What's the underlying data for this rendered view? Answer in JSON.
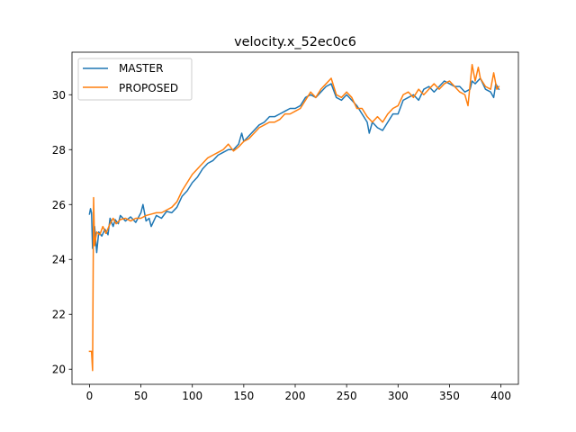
{
  "chart_data": {
    "type": "line",
    "title": "velocity.x_52ec0c6",
    "xlabel": "",
    "ylabel": "",
    "xlim": [
      -17,
      417
    ],
    "ylim": [
      19.45,
      31.55
    ],
    "xticks": [
      0,
      50,
      100,
      150,
      200,
      250,
      300,
      350,
      400
    ],
    "yticks": [
      20,
      22,
      24,
      26,
      28,
      30
    ],
    "grid": false,
    "legend_position": "upper-left",
    "colors": {
      "MASTER": "#1f77b4",
      "PROPOSED": "#ff7f0e"
    },
    "series": [
      {
        "name": "MASTER",
        "points": [
          [
            0,
            25.65
          ],
          [
            1,
            25.85
          ],
          [
            2,
            25.7
          ],
          [
            3,
            24.4
          ],
          [
            5,
            25.2
          ],
          [
            7,
            24.25
          ],
          [
            9,
            25.0
          ],
          [
            12,
            24.85
          ],
          [
            15,
            25.1
          ],
          [
            18,
            24.9
          ],
          [
            20,
            25.5
          ],
          [
            23,
            25.2
          ],
          [
            25,
            25.45
          ],
          [
            28,
            25.3
          ],
          [
            30,
            25.6
          ],
          [
            35,
            25.4
          ],
          [
            40,
            25.55
          ],
          [
            45,
            25.35
          ],
          [
            50,
            25.7
          ],
          [
            52,
            26.0
          ],
          [
            55,
            25.4
          ],
          [
            58,
            25.5
          ],
          [
            60,
            25.2
          ],
          [
            65,
            25.6
          ],
          [
            70,
            25.5
          ],
          [
            75,
            25.75
          ],
          [
            80,
            25.7
          ],
          [
            85,
            25.9
          ],
          [
            90,
            26.3
          ],
          [
            95,
            26.5
          ],
          [
            100,
            26.8
          ],
          [
            105,
            27.0
          ],
          [
            110,
            27.3
          ],
          [
            115,
            27.5
          ],
          [
            120,
            27.6
          ],
          [
            125,
            27.8
          ],
          [
            130,
            27.9
          ],
          [
            135,
            28.0
          ],
          [
            140,
            28.0
          ],
          [
            145,
            28.2
          ],
          [
            148,
            28.6
          ],
          [
            150,
            28.3
          ],
          [
            155,
            28.5
          ],
          [
            160,
            28.7
          ],
          [
            165,
            28.9
          ],
          [
            170,
            29.0
          ],
          [
            175,
            29.2
          ],
          [
            180,
            29.2
          ],
          [
            185,
            29.3
          ],
          [
            190,
            29.4
          ],
          [
            195,
            29.5
          ],
          [
            200,
            29.5
          ],
          [
            205,
            29.6
          ],
          [
            210,
            29.9
          ],
          [
            215,
            30.0
          ],
          [
            220,
            29.9
          ],
          [
            225,
            30.1
          ],
          [
            230,
            30.3
          ],
          [
            235,
            30.4
          ],
          [
            240,
            29.9
          ],
          [
            245,
            29.8
          ],
          [
            250,
            30.0
          ],
          [
            255,
            29.8
          ],
          [
            260,
            29.6
          ],
          [
            265,
            29.3
          ],
          [
            270,
            29.0
          ],
          [
            272,
            28.6
          ],
          [
            275,
            29.0
          ],
          [
            280,
            28.8
          ],
          [
            285,
            28.7
          ],
          [
            290,
            29.0
          ],
          [
            295,
            29.3
          ],
          [
            300,
            29.3
          ],
          [
            305,
            29.8
          ],
          [
            310,
            29.9
          ],
          [
            315,
            30.0
          ],
          [
            320,
            29.8
          ],
          [
            325,
            30.2
          ],
          [
            330,
            30.3
          ],
          [
            335,
            30.1
          ],
          [
            340,
            30.3
          ],
          [
            345,
            30.5
          ],
          [
            350,
            30.4
          ],
          [
            355,
            30.3
          ],
          [
            360,
            30.3
          ],
          [
            365,
            30.1
          ],
          [
            370,
            30.2
          ],
          [
            372,
            30.5
          ],
          [
            375,
            30.4
          ],
          [
            380,
            30.6
          ],
          [
            385,
            30.2
          ],
          [
            390,
            30.1
          ],
          [
            393,
            29.9
          ],
          [
            395,
            30.4
          ],
          [
            398,
            30.2
          ]
        ]
      },
      {
        "name": "PROPOSED",
        "points": [
          [
            0,
            20.65
          ],
          [
            2,
            20.65
          ],
          [
            3,
            19.95
          ],
          [
            4,
            26.25
          ],
          [
            5,
            24.5
          ],
          [
            7,
            25.0
          ],
          [
            10,
            24.9
          ],
          [
            13,
            25.2
          ],
          [
            16,
            24.95
          ],
          [
            20,
            25.3
          ],
          [
            23,
            25.5
          ],
          [
            26,
            25.3
          ],
          [
            30,
            25.45
          ],
          [
            35,
            25.5
          ],
          [
            40,
            25.4
          ],
          [
            45,
            25.5
          ],
          [
            50,
            25.5
          ],
          [
            55,
            25.6
          ],
          [
            60,
            25.65
          ],
          [
            65,
            25.7
          ],
          [
            70,
            25.7
          ],
          [
            75,
            25.8
          ],
          [
            80,
            25.9
          ],
          [
            85,
            26.1
          ],
          [
            90,
            26.5
          ],
          [
            95,
            26.8
          ],
          [
            100,
            27.1
          ],
          [
            105,
            27.3
          ],
          [
            110,
            27.5
          ],
          [
            115,
            27.7
          ],
          [
            120,
            27.8
          ],
          [
            125,
            27.9
          ],
          [
            130,
            28.0
          ],
          [
            135,
            28.2
          ],
          [
            140,
            27.95
          ],
          [
            145,
            28.1
          ],
          [
            150,
            28.3
          ],
          [
            155,
            28.4
          ],
          [
            160,
            28.6
          ],
          [
            165,
            28.8
          ],
          [
            170,
            28.9
          ],
          [
            175,
            29.0
          ],
          [
            180,
            29.0
          ],
          [
            185,
            29.1
          ],
          [
            190,
            29.3
          ],
          [
            195,
            29.3
          ],
          [
            200,
            29.4
          ],
          [
            205,
            29.5
          ],
          [
            210,
            29.8
          ],
          [
            215,
            30.1
          ],
          [
            220,
            29.9
          ],
          [
            225,
            30.2
          ],
          [
            230,
            30.4
          ],
          [
            235,
            30.6
          ],
          [
            240,
            30.0
          ],
          [
            245,
            29.9
          ],
          [
            250,
            30.1
          ],
          [
            255,
            29.9
          ],
          [
            260,
            29.5
          ],
          [
            265,
            29.5
          ],
          [
            270,
            29.2
          ],
          [
            275,
            29.0
          ],
          [
            280,
            29.2
          ],
          [
            285,
            29.0
          ],
          [
            290,
            29.3
          ],
          [
            295,
            29.5
          ],
          [
            300,
            29.6
          ],
          [
            305,
            30.0
          ],
          [
            310,
            30.1
          ],
          [
            315,
            29.9
          ],
          [
            320,
            30.2
          ],
          [
            325,
            30.0
          ],
          [
            330,
            30.2
          ],
          [
            335,
            30.4
          ],
          [
            340,
            30.2
          ],
          [
            345,
            30.4
          ],
          [
            350,
            30.5
          ],
          [
            355,
            30.3
          ],
          [
            360,
            30.1
          ],
          [
            365,
            30.0
          ],
          [
            368,
            29.6
          ],
          [
            372,
            31.1
          ],
          [
            375,
            30.5
          ],
          [
            378,
            31.0
          ],
          [
            380,
            30.6
          ],
          [
            385,
            30.3
          ],
          [
            390,
            30.2
          ],
          [
            393,
            30.8
          ],
          [
            396,
            30.2
          ],
          [
            398,
            30.3
          ]
        ]
      }
    ]
  }
}
